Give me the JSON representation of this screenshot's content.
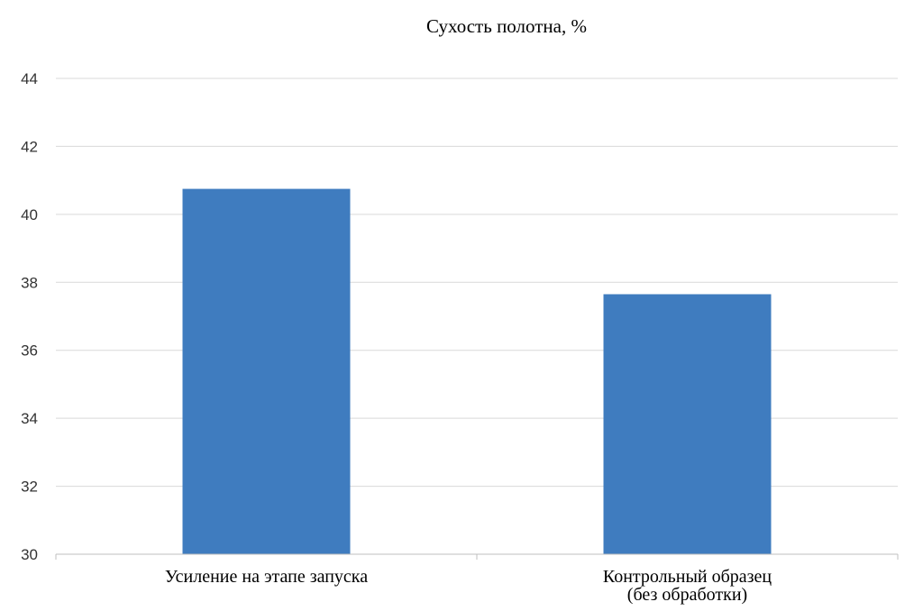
{
  "chart_data": {
    "type": "bar",
    "title": "Сухость полотна, %",
    "categories": [
      [
        "Усиление на этапе запуска"
      ],
      [
        "Контрольный образец",
        "(без обработки)"
      ]
    ],
    "values": [
      40.75,
      37.65
    ],
    "ylim": [
      30,
      44
    ],
    "yticks": [
      30,
      32,
      34,
      36,
      38,
      40,
      42,
      44
    ],
    "grid": true,
    "color": "#3f7cbf"
  }
}
